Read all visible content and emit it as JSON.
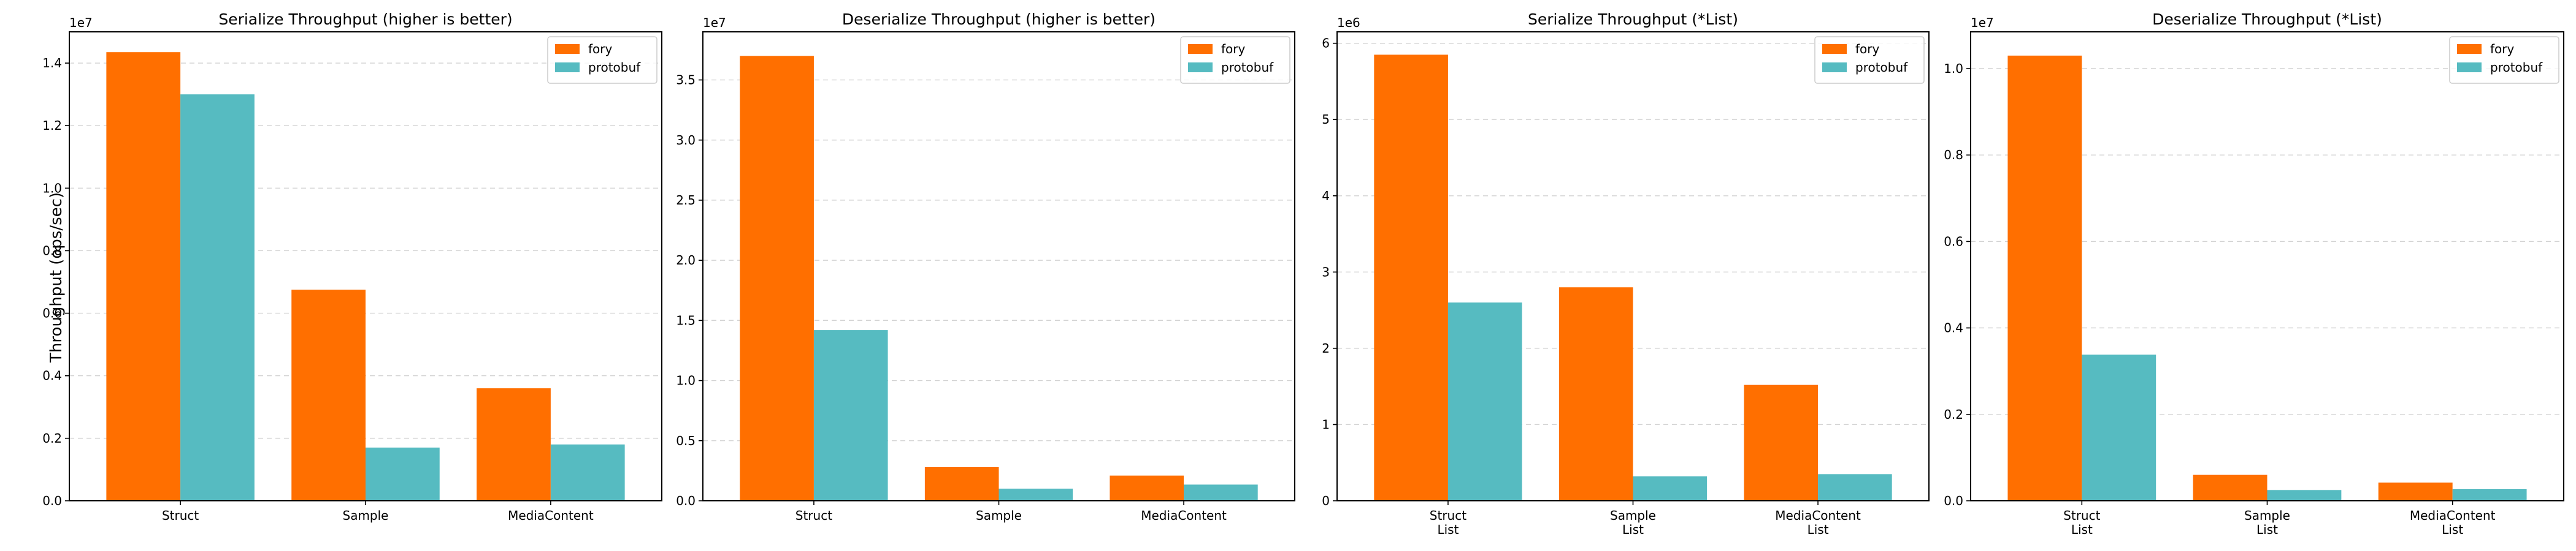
{
  "series_names": [
    "fory",
    "protobuf"
  ],
  "series_colors": [
    "#FF6F00",
    "#56BBC1"
  ],
  "ylabel": "Throughput (ops/sec)",
  "chart_data": [
    {
      "type": "bar",
      "title": "Serialize Throughput (higher is better)",
      "categories": [
        "Struct",
        "Sample",
        "MediaContent"
      ],
      "series": [
        {
          "name": "fory",
          "values": [
            14350000,
            6750000,
            3600000
          ]
        },
        {
          "name": "protobuf",
          "values": [
            13000000,
            1700000,
            1800000
          ]
        }
      ],
      "offset_text": "1e7",
      "scale": 10000000,
      "ylim": [
        0,
        15000000
      ],
      "yticks": [
        0,
        2000000,
        4000000,
        6000000,
        8000000,
        10000000,
        12000000,
        14000000
      ],
      "ytick_labels": [
        "0.0",
        "0.2",
        "0.4",
        "0.6",
        "0.8",
        "1.0",
        "1.2",
        "1.4"
      ],
      "legend": "top-right",
      "grid": "y-dashed"
    },
    {
      "type": "bar",
      "title": "Deserialize Throughput (higher is better)",
      "categories": [
        "Struct",
        "Sample",
        "MediaContent"
      ],
      "series": [
        {
          "name": "fory",
          "values": [
            37000000,
            2800000,
            2100000
          ]
        },
        {
          "name": "protobuf",
          "values": [
            14200000,
            1000000,
            1350000
          ]
        }
      ],
      "offset_text": "1e7",
      "scale": 10000000,
      "ylim": [
        0,
        39000000
      ],
      "yticks": [
        0,
        5000000,
        10000000,
        15000000,
        20000000,
        25000000,
        30000000,
        35000000
      ],
      "ytick_labels": [
        "0.0",
        "0.5",
        "1.0",
        "1.5",
        "2.0",
        "2.5",
        "3.0",
        "3.5"
      ],
      "legend": "top-right",
      "grid": "y-dashed"
    },
    {
      "type": "bar",
      "title": "Serialize Throughput (*List)",
      "categories": [
        "Struct\nList",
        "Sample\nList",
        "MediaContent\nList"
      ],
      "series": [
        {
          "name": "fory",
          "values": [
            5850000,
            2800000,
            1520000
          ]
        },
        {
          "name": "protobuf",
          "values": [
            2600000,
            320000,
            350000
          ]
        }
      ],
      "offset_text": "1e6",
      "scale": 1000000,
      "ylim": [
        0,
        6150000
      ],
      "yticks": [
        0,
        1000000,
        2000000,
        3000000,
        4000000,
        5000000,
        6000000
      ],
      "ytick_labels": [
        "0",
        "1",
        "2",
        "3",
        "4",
        "5",
        "6"
      ],
      "legend": "top-right",
      "grid": "y-dashed"
    },
    {
      "type": "bar",
      "title": "Deserialize Throughput (*List)",
      "categories": [
        "Struct\nList",
        "Sample\nList",
        "MediaContent\nList"
      ],
      "series": [
        {
          "name": "fory",
          "values": [
            10300000,
            600000,
            420000
          ]
        },
        {
          "name": "protobuf",
          "values": [
            3380000,
            250000,
            270000
          ]
        }
      ],
      "offset_text": "1e7",
      "scale": 10000000,
      "ylim": [
        0,
        10850000
      ],
      "yticks": [
        0,
        2000000,
        4000000,
        6000000,
        8000000,
        10000000
      ],
      "ytick_labels": [
        "0.0",
        "0.2",
        "0.4",
        "0.6",
        "0.8",
        "1.0"
      ],
      "legend": "top-right",
      "grid": "y-dashed"
    }
  ]
}
